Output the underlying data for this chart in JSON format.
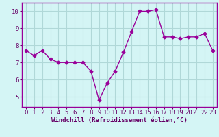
{
  "x": [
    0,
    1,
    2,
    3,
    4,
    5,
    6,
    7,
    8,
    9,
    10,
    11,
    12,
    13,
    14,
    15,
    16,
    17,
    18,
    19,
    20,
    21,
    22,
    23
  ],
  "y": [
    7.7,
    7.4,
    7.7,
    7.2,
    7.0,
    7.0,
    7.0,
    7.0,
    6.5,
    4.8,
    5.8,
    6.5,
    7.6,
    8.8,
    10.0,
    10.0,
    10.1,
    8.5,
    8.5,
    8.4,
    8.5,
    8.5,
    8.7,
    7.7
  ],
  "line_color": "#990099",
  "marker": "D",
  "marker_size": 2.5,
  "bg_color": "#d4f5f5",
  "grid_color": "#b0d8d8",
  "xlabel": "Windchill (Refroidissement éolien,°C)",
  "xlabel_color": "#660066",
  "xlabel_fontsize": 6.5,
  "tick_color": "#660066",
  "tick_fontsize": 6.5,
  "ylim": [
    4.4,
    10.5
  ],
  "yticks": [
    5,
    6,
    7,
    8,
    9,
    10
  ],
  "xlim": [
    -0.5,
    23.5
  ],
  "xticks": [
    0,
    1,
    2,
    3,
    4,
    5,
    6,
    7,
    8,
    9,
    10,
    11,
    12,
    13,
    14,
    15,
    16,
    17,
    18,
    19,
    20,
    21,
    22,
    23
  ],
  "spine_color": "#990099"
}
